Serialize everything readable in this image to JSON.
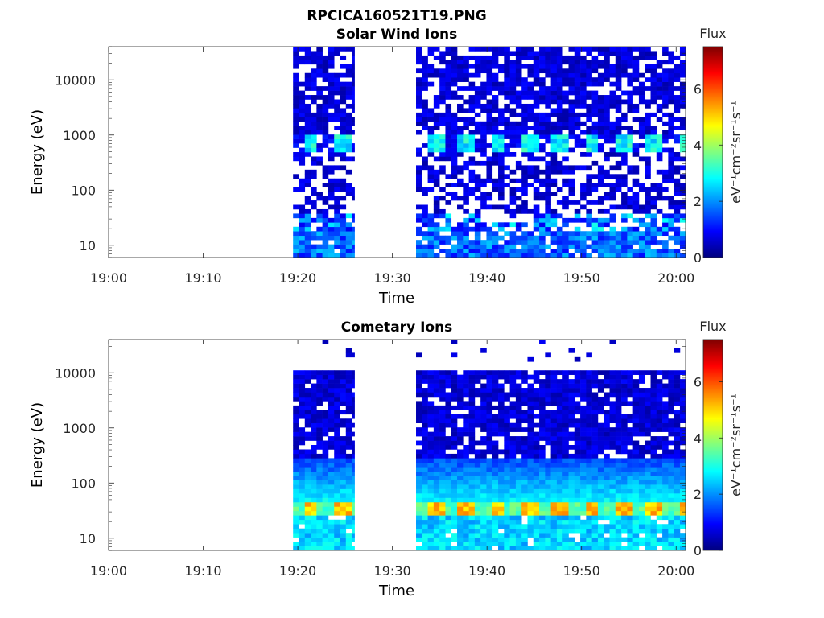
{
  "figure_title": "RPCICA160521T19.PNG",
  "chart_data": [
    {
      "type": "heatmap",
      "title": "Solar Wind Ions",
      "xlabel": "Time",
      "ylabel": "Energy (eV)",
      "x_ticks": [
        "19:00",
        "19:10",
        "19:20",
        "19:30",
        "19:40",
        "19:50",
        "20:00"
      ],
      "y_ticks": [
        "10",
        "100",
        "1000",
        "10000"
      ],
      "y_scale": "log",
      "xlim": [
        "19:00",
        "20:01"
      ],
      "ylim": [
        6,
        40000
      ],
      "colorbar": {
        "title": "Flux",
        "label": "eV⁻¹cm⁻²sr⁻¹s⁻¹",
        "ticks": [
          "0",
          "2",
          "4",
          "6"
        ],
        "range": [
          0,
          7.5
        ],
        "colormap": "jet"
      },
      "data_intervals": [
        [
          "19:19.5",
          "19:26"
        ],
        [
          "19:32.5",
          "20:01"
        ]
      ],
      "features": [
        {
          "energy_range_eV": [
            500,
            1000
          ],
          "flux": "2-3",
          "pattern": "periodic, ~3 min"
        },
        {
          "energy_range_eV": [
            6,
            40
          ],
          "flux": "1-2"
        },
        {
          "energy_range_eV": [
            40,
            40000
          ],
          "flux": "0.3-1",
          "coverage": "sparse"
        }
      ]
    },
    {
      "type": "heatmap",
      "title": "Cometary Ions",
      "xlabel": "Time",
      "ylabel": "Energy (eV)",
      "x_ticks": [
        "19:00",
        "19:10",
        "19:20",
        "19:30",
        "19:40",
        "19:50",
        "20:00"
      ],
      "y_ticks": [
        "10",
        "100",
        "1000",
        "10000"
      ],
      "y_scale": "log",
      "xlim": [
        "19:00",
        "20:01"
      ],
      "ylim": [
        6,
        40000
      ],
      "colorbar": {
        "title": "Flux",
        "label": "eV⁻¹cm⁻²sr⁻¹s⁻¹",
        "ticks": [
          "0",
          "2",
          "4",
          "6"
        ],
        "range": [
          0,
          7.5
        ],
        "colormap": "jet"
      },
      "data_intervals": [
        [
          "19:19.5",
          "19:26"
        ],
        [
          "19:32.5",
          "20:01"
        ]
      ],
      "features": [
        {
          "energy_range_eV": [
            25,
            45
          ],
          "flux": "4.5-5.5",
          "pattern": "periodic, ~3 min"
        },
        {
          "energy_range_eV": [
            6,
            25
          ],
          "flux": "2-3"
        },
        {
          "energy_range_eV": [
            45,
            300
          ],
          "flux": "1.5-2.5",
          "trend": "decreasing with energy"
        },
        {
          "energy_range_eV": [
            300,
            12000
          ],
          "flux": "0.3-1"
        }
      ]
    }
  ]
}
